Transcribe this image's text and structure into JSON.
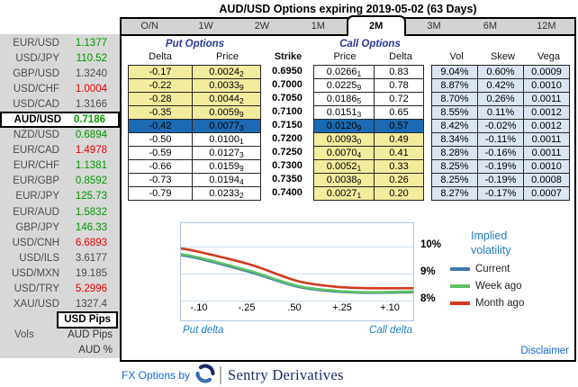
{
  "title": "AUD/USD Options expiring 2019-05-02 (63 Days)",
  "tabs": {
    "items": [
      {
        "label": "O/N",
        "selected": false
      },
      {
        "label": "1W",
        "selected": false
      },
      {
        "label": "2W",
        "selected": false
      },
      {
        "label": "1M",
        "selected": false
      },
      {
        "label": "2M",
        "selected": true
      },
      {
        "label": "3M",
        "selected": false
      },
      {
        "label": "6M",
        "selected": false
      },
      {
        "label": "12M",
        "selected": false
      }
    ]
  },
  "sidebar": {
    "pairs": [
      {
        "label": "EUR/USD",
        "value": "1.1377",
        "trend": "up",
        "selected": false
      },
      {
        "label": "USD/JPY",
        "value": "110.52",
        "trend": "up",
        "selected": false
      },
      {
        "label": "GBP/USD",
        "value": "1.3240",
        "trend": "flat",
        "selected": false
      },
      {
        "label": "USD/CHF",
        "value": "1.0004",
        "trend": "down",
        "selected": false
      },
      {
        "label": "USD/CAD",
        "value": "1.3166",
        "trend": "flat",
        "selected": false
      },
      {
        "label": "AUD/USD",
        "value": "0.7186",
        "trend": "up",
        "selected": true
      },
      {
        "label": "NZD/USD",
        "value": "0.6894",
        "trend": "up",
        "selected": false
      },
      {
        "label": "EUR/CAD",
        "value": "1.4978",
        "trend": "down",
        "selected": false
      },
      {
        "label": "EUR/CHF",
        "value": "1.1381",
        "trend": "up",
        "selected": false
      },
      {
        "label": "EUR/GBP",
        "value": "0.8592",
        "trend": "up",
        "selected": false
      },
      {
        "label": "EUR/JPY",
        "value": "125.73",
        "trend": "up",
        "selected": false
      },
      {
        "label": "EUR/AUD",
        "value": "1.5832",
        "trend": "up",
        "selected": false
      },
      {
        "label": "GBP/JPY",
        "value": "146.33",
        "trend": "up",
        "selected": false
      },
      {
        "label": "USD/CNH",
        "value": "6.6893",
        "trend": "down",
        "selected": false
      },
      {
        "label": "USD/ILS",
        "value": "3.6177",
        "trend": "flat",
        "selected": false
      },
      {
        "label": "USD/MXN",
        "value": "19.185",
        "trend": "flat",
        "selected": false
      },
      {
        "label": "USD/TRY",
        "value": "5.2996",
        "trend": "down",
        "selected": false
      },
      {
        "label": "XAU/USD",
        "value": "1327.4",
        "trend": "flat",
        "selected": false
      }
    ],
    "vols_label": "Vols",
    "modes": [
      {
        "label": "USD Pips",
        "selected": true
      },
      {
        "label": "AUD Pips",
        "selected": false
      },
      {
        "label": "AUD %",
        "selected": false
      }
    ]
  },
  "table": {
    "put_header": "Put Options",
    "call_header": "Call Options",
    "columns": {
      "delta": "Delta",
      "price": "Price",
      "strike": "Strike",
      "vol": "Vol",
      "skew": "Skew",
      "vega": "Vega"
    },
    "rows": [
      {
        "put_delta": "-0.17",
        "put_price": "0.0024",
        "put_price_sub": "2",
        "strike": "0.6950",
        "call_price": "0.0266",
        "call_price_sub": "1",
        "call_delta": "0.83",
        "vol": "9.04%",
        "skew": "0.60%",
        "vega": "0.0009",
        "state": "yellow-put"
      },
      {
        "put_delta": "-0.22",
        "put_price": "0.0033",
        "put_price_sub": "9",
        "strike": "0.7000",
        "call_price": "0.0225",
        "call_price_sub": "9",
        "call_delta": "0.78",
        "vol": "8.87%",
        "skew": "0.42%",
        "vega": "0.0010",
        "state": "yellow-put"
      },
      {
        "put_delta": "-0.28",
        "put_price": "0.0044",
        "put_price_sub": "2",
        "strike": "0.7050",
        "call_price": "0.0186",
        "call_price_sub": "5",
        "call_delta": "0.72",
        "vol": "8.70%",
        "skew": "0.26%",
        "vega": "0.0011",
        "state": "yellow-put"
      },
      {
        "put_delta": "-0.35",
        "put_price": "0.0059",
        "put_price_sub": "9",
        "strike": "0.7100",
        "call_price": "0.0151",
        "call_price_sub": "3",
        "call_delta": "0.65",
        "vol": "8.55%",
        "skew": "0.11%",
        "vega": "0.0012",
        "state": "yellow-put"
      },
      {
        "put_delta": "-0.42",
        "put_price": "0.0077",
        "put_price_sub": "3",
        "strike": "0.7150",
        "call_price": "0.0120",
        "call_price_sub": "9",
        "call_delta": "0.57",
        "vol": "8.42%",
        "skew": "-0.02%",
        "vega": "0.0012",
        "state": "selected"
      },
      {
        "put_delta": "-0.50",
        "put_price": "0.0100",
        "put_price_sub": "1",
        "strike": "0.7200",
        "call_price": "0.0093",
        "call_price_sub": "0",
        "call_delta": "0.49",
        "vol": "8.34%",
        "skew": "-0.11%",
        "vega": "0.0011",
        "state": "yellow-call"
      },
      {
        "put_delta": "-0.59",
        "put_price": "0.0127",
        "put_price_sub": "3",
        "strike": "0.7250",
        "call_price": "0.0070",
        "call_price_sub": "4",
        "call_delta": "0.41",
        "vol": "8.28%",
        "skew": "-0.16%",
        "vega": "0.0011",
        "state": "yellow-call"
      },
      {
        "put_delta": "-0.66",
        "put_price": "0.0159",
        "put_price_sub": "9",
        "strike": "0.7300",
        "call_price": "0.0052",
        "call_price_sub": "1",
        "call_delta": "0.33",
        "vol": "8.25%",
        "skew": "-0.19%",
        "vega": "0.0010",
        "state": "yellow-call"
      },
      {
        "put_delta": "-0.73",
        "put_price": "0.0194",
        "put_price_sub": "4",
        "strike": "0.7350",
        "call_price": "0.0038",
        "call_price_sub": "9",
        "call_delta": "0.26",
        "vol": "8.25%",
        "skew": "-0.19%",
        "vega": "0.0008",
        "state": "yellow-call"
      },
      {
        "put_delta": "-0.79",
        "put_price": "0.0233",
        "put_price_sub": "2",
        "strike": "0.7400",
        "call_price": "0.0027",
        "call_price_sub": "1",
        "call_delta": "0.20",
        "vol": "8.27%",
        "skew": "-0.17%",
        "vega": "0.0007",
        "state": "yellow-call"
      }
    ]
  },
  "chart_data": {
    "type": "line",
    "title": "Implied volatility",
    "x_tick_labels": [
      "-.10",
      "-.25",
      ".50",
      "+.25",
      "+.10"
    ],
    "x_axis_left_label": "Put delta",
    "x_axis_right_label": "Call delta",
    "y_ticks": [
      {
        "label": "10%",
        "value": 10
      },
      {
        "label": "9%",
        "value": 9
      },
      {
        "label": "8%",
        "value": 8
      }
    ],
    "ylim": [
      7.3,
      10.9
    ],
    "grid": true,
    "legend_position": "right",
    "series": [
      {
        "name": "Current",
        "color": "#4179ad",
        "points": [
          [
            0,
            9.68
          ],
          [
            0.08,
            9.55
          ],
          [
            0.3,
            9.05
          ],
          [
            0.5,
            8.52
          ],
          [
            0.66,
            8.34
          ],
          [
            0.8,
            8.29
          ],
          [
            1,
            8.31
          ]
        ]
      },
      {
        "name": "Week ago",
        "color": "#5dc263",
        "points": [
          [
            0,
            9.72
          ],
          [
            0.08,
            9.59
          ],
          [
            0.3,
            9.09
          ],
          [
            0.5,
            8.55
          ],
          [
            0.66,
            8.37
          ],
          [
            0.8,
            8.31
          ],
          [
            1,
            8.34
          ]
        ]
      },
      {
        "name": "Month ago",
        "color": "#d23a1e",
        "points": [
          [
            0,
            9.93
          ],
          [
            0.08,
            9.8
          ],
          [
            0.3,
            9.33
          ],
          [
            0.5,
            8.73
          ],
          [
            0.66,
            8.52
          ],
          [
            0.8,
            8.46
          ],
          [
            1,
            8.46
          ]
        ]
      }
    ]
  },
  "footer": {
    "fx_options_by": "FX Options by",
    "brand": "Sentry Derivatives",
    "disclaimer": "Disclaimer"
  },
  "colors": {
    "selected_row_blue": "#1c6ab3",
    "itm_yellow": "#f2ec9d",
    "greeks_light_blue": "#dbe5f2",
    "value_up_green": "#009900",
    "value_down_red": "#ee0000",
    "value_flat_gray": "#4d4d4d",
    "section_header_navy": "#2b3a94",
    "link_blue": "#1565d8",
    "chart_label_blue": "#1d7dc4",
    "brand_navy": "#1b2a6b"
  }
}
